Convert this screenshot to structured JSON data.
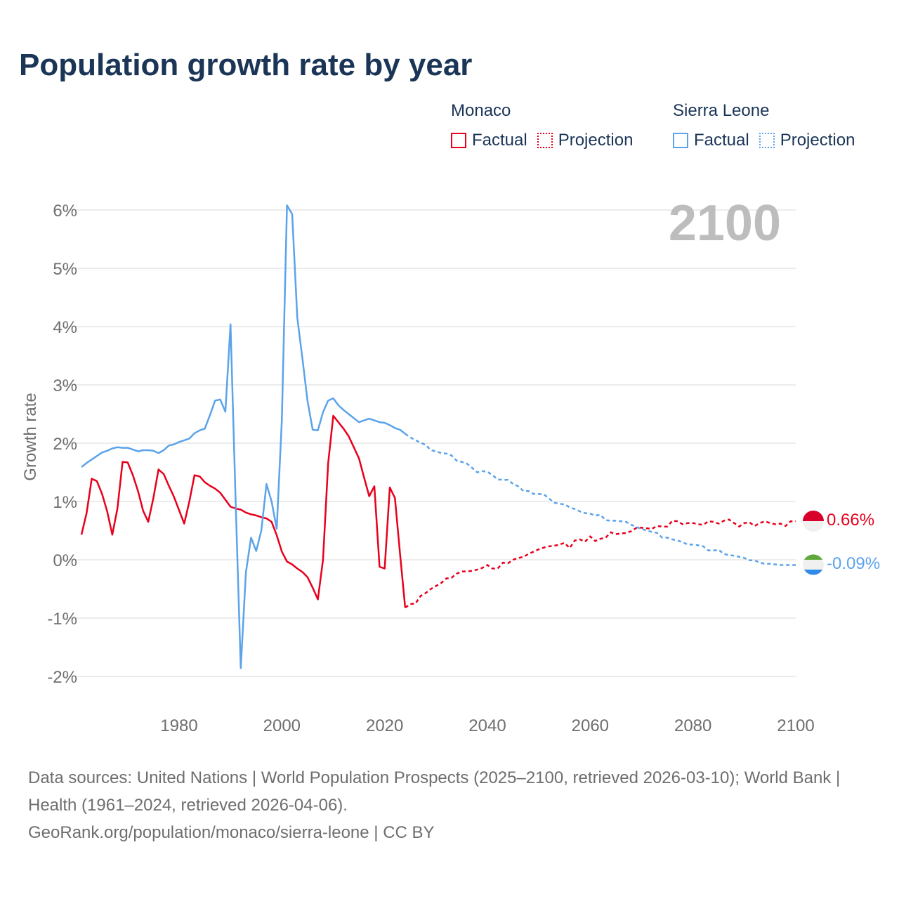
{
  "chart_data": {
    "type": "line",
    "title": "Population growth rate by year",
    "ylabel": "Growth rate",
    "xlabel": "",
    "ylim": [
      -2.4,
      6.4
    ],
    "xlim": [
      1961,
      2100
    ],
    "x_ticks": [
      1980,
      2000,
      2020,
      2040,
      2060,
      2080,
      2100
    ],
    "y_ticks": [
      -2,
      -1,
      0,
      1,
      2,
      3,
      4,
      5,
      6
    ],
    "y_tick_labels": [
      "-2%",
      "-1%",
      "0%",
      "1%",
      "2%",
      "3%",
      "4%",
      "5%",
      "6%"
    ],
    "x_tick_labels": [
      "1980",
      "2000",
      "2020",
      "2040",
      "2060",
      "2080",
      "2100"
    ],
    "grid": true,
    "year_label": "2100",
    "legend": {
      "placement": "top-right",
      "groups": [
        {
          "name": "Monaco",
          "factual": "Factual",
          "projection": "Projection",
          "color": "#e8001c"
        },
        {
          "name": "Sierra Leone",
          "factual": "Factual",
          "projection": "Projection",
          "color": "#5ba3ea"
        }
      ]
    },
    "series": [
      {
        "name": "Monaco",
        "color": "#e8001c",
        "end_label": "0.66%",
        "factual_start": 1961,
        "factual": [
          0.43,
          0.8,
          1.39,
          1.35,
          1.13,
          0.83,
          0.43,
          0.88,
          1.68,
          1.67,
          1.45,
          1.18,
          0.84,
          0.65,
          1.06,
          1.55,
          1.47,
          1.27,
          1.08,
          0.85,
          0.62,
          1.0,
          1.45,
          1.43,
          1.33,
          1.27,
          1.22,
          1.15,
          1.03,
          0.91,
          0.88,
          0.86,
          0.81,
          0.78,
          0.76,
          0.73,
          0.71,
          0.65,
          0.42,
          0.14,
          -0.03,
          -0.08,
          -0.15,
          -0.21,
          -0.3,
          -0.48,
          -0.68,
          0.0,
          1.65,
          2.47,
          2.36,
          2.25,
          2.12,
          1.93,
          1.74,
          1.41,
          1.09,
          1.26,
          -0.12,
          -0.15,
          1.24,
          1.06,
          0.1,
          -0.82
        ],
        "projection_start": 2025,
        "projection": [
          -0.76,
          -0.75,
          -0.62,
          -0.57,
          -0.5,
          -0.45,
          -0.4,
          -0.32,
          -0.31,
          -0.24,
          -0.2,
          -0.2,
          -0.19,
          -0.17,
          -0.14,
          -0.09,
          -0.15,
          -0.15,
          -0.05,
          -0.06,
          0.0,
          0.03,
          0.05,
          0.1,
          0.14,
          0.18,
          0.21,
          0.23,
          0.24,
          0.26,
          0.29,
          0.2,
          0.33,
          0.35,
          0.31,
          0.4,
          0.32,
          0.36,
          0.38,
          0.47,
          0.44,
          0.45,
          0.46,
          0.49,
          0.55,
          0.55,
          0.54,
          0.53,
          0.58,
          0.57,
          0.57,
          0.67,
          0.66,
          0.61,
          0.63,
          0.63,
          0.61,
          0.6,
          0.66,
          0.65,
          0.62,
          0.67,
          0.69,
          0.63,
          0.57,
          0.63,
          0.64,
          0.58,
          0.63,
          0.66,
          0.63,
          0.61,
          0.62,
          0.58,
          0.66,
          0.66
        ]
      },
      {
        "name": "Sierra Leone",
        "color": "#5ba3ea",
        "end_label": "-0.09%",
        "factual_start": 1961,
        "factual": [
          1.59,
          1.66,
          1.72,
          1.78,
          1.84,
          1.87,
          1.91,
          1.93,
          1.92,
          1.92,
          1.89,
          1.86,
          1.88,
          1.88,
          1.87,
          1.83,
          1.88,
          1.96,
          1.98,
          2.02,
          2.05,
          2.08,
          2.17,
          2.22,
          2.25,
          2.48,
          2.73,
          2.75,
          2.54,
          4.04,
          1.0,
          -1.86,
          -0.22,
          0.38,
          0.15,
          0.5,
          1.3,
          1.0,
          0.53,
          2.4,
          6.08,
          5.93,
          4.15,
          3.45,
          2.72,
          2.23,
          2.22,
          2.53,
          2.73,
          2.77,
          2.65,
          2.57,
          2.5,
          2.43,
          2.36,
          2.39,
          2.42,
          2.39,
          2.36,
          2.35,
          2.31,
          2.26,
          2.23,
          2.16
        ],
        "projection_start": 2025,
        "projection": [
          2.1,
          2.05,
          2.01,
          1.97,
          1.88,
          1.86,
          1.83,
          1.82,
          1.79,
          1.7,
          1.68,
          1.65,
          1.58,
          1.5,
          1.52,
          1.51,
          1.45,
          1.38,
          1.37,
          1.37,
          1.3,
          1.26,
          1.18,
          1.18,
          1.13,
          1.13,
          1.12,
          1.05,
          0.98,
          0.96,
          0.95,
          0.9,
          0.87,
          0.83,
          0.8,
          0.79,
          0.76,
          0.77,
          0.68,
          0.67,
          0.67,
          0.66,
          0.65,
          0.6,
          0.56,
          0.53,
          0.5,
          0.48,
          0.46,
          0.38,
          0.38,
          0.35,
          0.33,
          0.3,
          0.26,
          0.26,
          0.25,
          0.23,
          0.16,
          0.16,
          0.17,
          0.1,
          0.08,
          0.07,
          0.05,
          0.03,
          -0.01,
          -0.01,
          -0.05,
          -0.07,
          -0.07,
          -0.08,
          -0.09,
          -0.09,
          -0.09,
          -0.09
        ]
      }
    ]
  },
  "footer": {
    "sources": "Data sources: United Nations | World Population Prospects (2025–2100, retrieved 2026-03-10); World Bank | Health (1961–2024, retrieved 2026-04-06).",
    "link": "GeoRank.org/population/monaco/sierra-leone | CC BY"
  }
}
